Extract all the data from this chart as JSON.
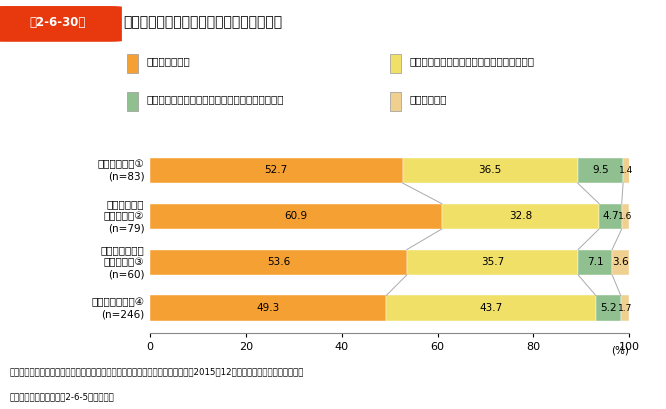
{
  "title_tag": "第2-6-30図",
  "title_main": "企業分類別に見た事前リスク評価の実施者",
  "categories": [
    "稼げる企業　①\n(n=83)",
    "経常利益率の\n高い企業　②\n(n=79)",
    "自己資本比率の\n高い企業　③\n(n=60)",
    "その他の企業　④\n(n=246)"
  ],
  "legend_labels": [
    "社内の人材のみ",
    "社内の人材が中心となり、適宜、外部に相談",
    "外部機関が中心となり、適宜、社内の人材も参加",
    "外部機関のみ"
  ],
  "colors": [
    "#F5A033",
    "#F0E068",
    "#90C090",
    "#F0D090"
  ],
  "data": [
    [
      52.7,
      36.5,
      9.5,
      1.4
    ],
    [
      60.9,
      32.8,
      4.7,
      1.6
    ],
    [
      53.6,
      35.7,
      7.1,
      3.6
    ],
    [
      49.3,
      43.7,
      5.2,
      1.7
    ]
  ],
  "xlim": [
    0,
    100
  ],
  "xticks": [
    0,
    20,
    40,
    60,
    80,
    100
  ],
  "footnote1": "資料：中小企業庁委託「中小企業の成長と投資行動に関するアンケート調査」（2015年12月、（株）帝国データバンク）",
  "footnote2": "（注）　企業分類は、第2-6-5図に従う。",
  "bg_color": "#FFFFFF",
  "header_bg": "#E8380D",
  "header_text": "#FFFFFF"
}
